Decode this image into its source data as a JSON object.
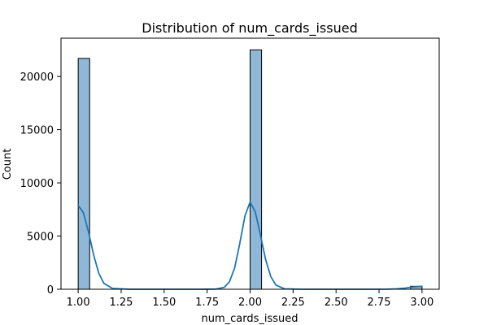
{
  "chart_data": {
    "type": "bar",
    "subtype": "histogram_with_kde",
    "title": "Distribution of num_cards_issued",
    "xlabel": "num_cards_issued",
    "ylabel": "Count",
    "xlim": [
      0.9,
      3.1
    ],
    "ylim": [
      0,
      23600
    ],
    "xticks": [
      1.0,
      1.25,
      1.5,
      1.75,
      2.0,
      2.25,
      2.5,
      2.75,
      3.0
    ],
    "xtick_labels": [
      "1.00",
      "1.25",
      "1.50",
      "1.75",
      "2.00",
      "2.25",
      "2.50",
      "2.75",
      "3.00"
    ],
    "yticks": [
      0,
      5000,
      10000,
      15000,
      20000
    ],
    "ytick_labels": [
      "0",
      "5000",
      "10000",
      "15000",
      "20000"
    ],
    "grid": false,
    "bins": [
      {
        "x0": 1.0,
        "x1": 1.0667,
        "count": 21700
      },
      {
        "x0": 2.0,
        "x1": 2.0667,
        "count": 22500
      },
      {
        "x0": 2.9333,
        "x1": 3.0,
        "count": 280
      }
    ],
    "kde": {
      "x": [
        1.0,
        1.03,
        1.06,
        1.09,
        1.12,
        1.15,
        1.2,
        1.3,
        1.5,
        1.7,
        1.8,
        1.85,
        1.88,
        1.91,
        1.94,
        1.97,
        2.0,
        2.03,
        2.06,
        2.09,
        2.12,
        2.15,
        2.2,
        2.3,
        2.5,
        2.7,
        2.8,
        2.85,
        2.9,
        2.95,
        3.0
      ],
      "y": [
        7900,
        7200,
        5400,
        3200,
        1500,
        550,
        80,
        0,
        0,
        0,
        10,
        180,
        700,
        2000,
        4300,
        6900,
        8200,
        7300,
        5100,
        2800,
        1200,
        400,
        40,
        0,
        0,
        0,
        10,
        40,
        110,
        220,
        280
      ]
    },
    "colors": {
      "bar_fill": "#8fb8d8",
      "bar_edge": "#000000",
      "kde_line": "#1f77b4"
    }
  }
}
